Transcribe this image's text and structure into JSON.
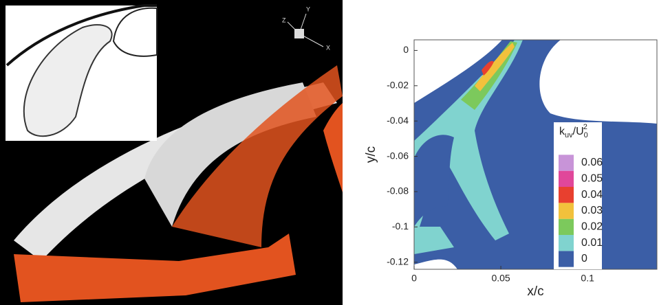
{
  "render_panel": {
    "axis_labels": [
      "X",
      "Y",
      "Z"
    ]
  },
  "chart_data": {
    "type": "contour",
    "xlabel": "x/c",
    "ylabel": "y/c",
    "xlim": [
      0,
      0.14
    ],
    "ylim": [
      -0.124,
      0.006
    ],
    "xticks": [
      0,
      0.05,
      0.1
    ],
    "yticks": [
      0,
      -0.02,
      -0.04,
      -0.06,
      -0.08,
      -0.1,
      -0.12
    ],
    "colorbar_title": {
      "base": "k",
      "sub": "uv",
      "mid": "/U",
      "sub2": "0",
      "sup": "2"
    },
    "levels": [
      0,
      0.01,
      0.02,
      0.03,
      0.04,
      0.05,
      0.06
    ],
    "level_colors": [
      "#3b5ea6",
      "#80d3cf",
      "#7cc95c",
      "#f2c13c",
      "#e8402f",
      "#e0479a",
      "#c894d8"
    ]
  }
}
